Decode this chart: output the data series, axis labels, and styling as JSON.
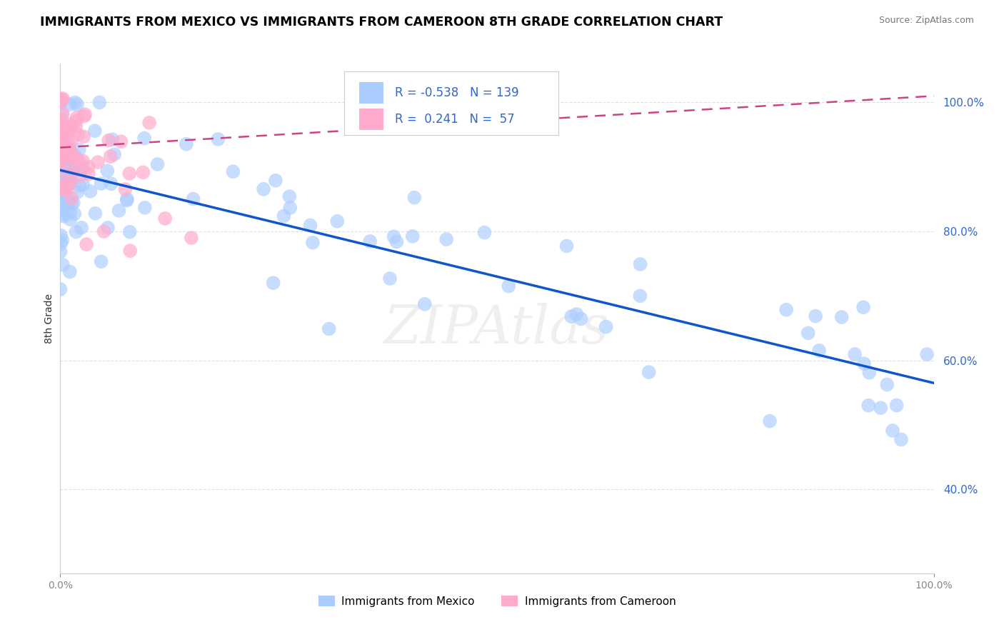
{
  "title": "IMMIGRANTS FROM MEXICO VS IMMIGRANTS FROM CAMEROON 8TH GRADE CORRELATION CHART",
  "source": "Source: ZipAtlas.com",
  "ylabel": "8th Grade",
  "blue_color": "#aaccff",
  "pink_color": "#ffaacc",
  "trend_blue": "#1155cc",
  "trend_pink": "#cc4488",
  "text_blue": "#3366cc",
  "r_mexico": "-0.538",
  "n_mexico": "139",
  "r_cameroon": "0.241",
  "n_cameroon": "57",
  "legend1": "Immigrants from Mexico",
  "legend2": "Immigrants from Cameroon",
  "watermark": "ZipAtlas",
  "xlim": [
    0.0,
    1.0
  ],
  "ylim": [
    0.27,
    1.06
  ],
  "xticks": [
    0.0,
    1.0
  ],
  "yticks": [
    0.4,
    0.6,
    0.8,
    1.0
  ],
  "blue_trendline_x": [
    0.0,
    1.0
  ],
  "blue_trendline_y": [
    0.895,
    0.565
  ],
  "pink_trendline_x": [
    0.0,
    1.0
  ],
  "pink_trendline_y": [
    0.93,
    1.01
  ]
}
